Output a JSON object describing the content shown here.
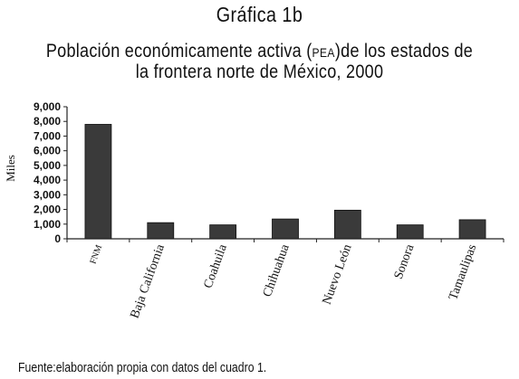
{
  "figure_label": "Gráfica 1b",
  "title_line1_before": "Población económicamente activa (",
  "title_line1_abbr": "PEA",
  "title_line1_after": ")de los estados de",
  "title_line2": "la frontera norte de México, 2000",
  "source": "Fuente:elaboración propia con datos del cuadro 1.",
  "chart_data": {
    "type": "bar",
    "title": "Población económicamente activa (PEA)de los estados de la frontera norte de México, 2000",
    "ylabel": "Miles",
    "xlabel": "",
    "categories": [
      "FNM",
      "Baja California",
      "Coahuila",
      "Chihuahua",
      "Nuevo León",
      "Sonora",
      "Tamaulipas"
    ],
    "values": [
      7800,
      1100,
      950,
      1350,
      1950,
      950,
      1300
    ],
    "ylim": [
      0,
      9000
    ],
    "yticks": [
      0,
      1000,
      2000,
      3000,
      4000,
      5000,
      6000,
      7000,
      8000,
      9000
    ],
    "ytick_labels": [
      "0",
      "1,000",
      "2,000",
      "3,000",
      "4,000",
      "5,000",
      "6,000",
      "7,000",
      "8,000",
      "9,000"
    ],
    "bar_color": "#3a3a3a",
    "grid": false,
    "legend": "none"
  }
}
